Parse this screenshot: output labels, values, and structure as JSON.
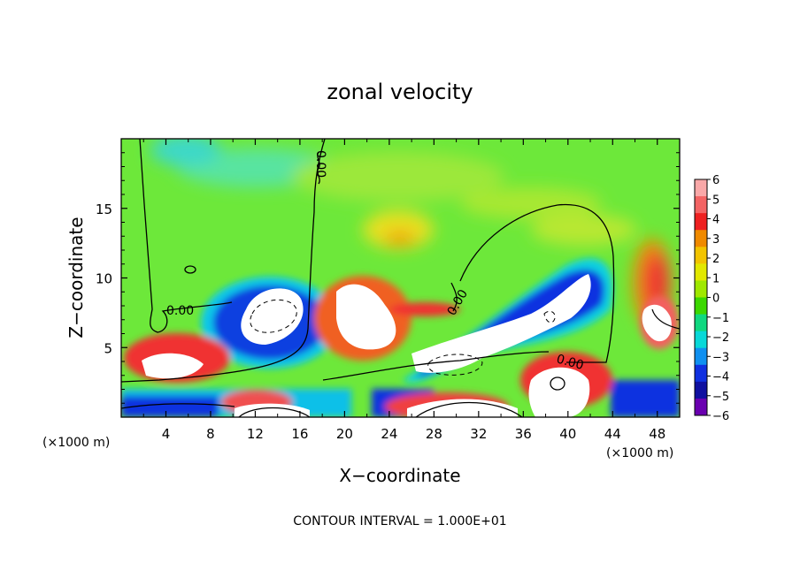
{
  "chart_data": {
    "type": "heatmap",
    "title": "zonal velocity",
    "xlabel": "X−coordinate",
    "ylabel": "Z−coordinate",
    "x_scale_note": "(×1000 m)",
    "z_scale_note": "(×1000 m)",
    "footer": "CONTOUR INTERVAL = 1.000E+01",
    "xlim": [
      0,
      50
    ],
    "ylim": [
      0,
      20
    ],
    "x_ticks": [
      4,
      8,
      12,
      16,
      20,
      24,
      28,
      32,
      36,
      40,
      44,
      48
    ],
    "y_ticks": [
      5,
      10,
      15
    ],
    "contour_label": "0.00",
    "colorbar": {
      "ticks": [
        "6",
        "5",
        "4",
        "3",
        "2",
        "1",
        "0",
        "−1",
        "−2",
        "−3",
        "−4",
        "−5",
        "−6"
      ],
      "colors": [
        "#f9a8a8",
        "#f36464",
        "#ee2020",
        "#f08a00",
        "#f2c400",
        "#e2e800",
        "#9fe800",
        "#3cd800",
        "#10d880",
        "#08d8d8",
        "#1090f0",
        "#1030e0",
        "#1010a0",
        "#6a00b0"
      ]
    },
    "features": [
      {
        "kind": "max",
        "x": 4,
        "z": 4.5,
        "value": 6
      },
      {
        "kind": "min",
        "x": 14,
        "z": 8,
        "value": -6
      },
      {
        "kind": "max",
        "x": 22,
        "z": 7.5,
        "value": 6
      },
      {
        "kind": "min",
        "x": 30,
        "z": 4,
        "value": -6
      },
      {
        "kind": "min",
        "x": 39,
        "z": 8,
        "value": -6
      },
      {
        "kind": "max",
        "x": 40,
        "z": 2,
        "value": 6
      },
      {
        "kind": "max",
        "x": 47,
        "z": 9,
        "value": 4
      },
      {
        "kind": "max",
        "x": 24,
        "z": 13,
        "value": 2
      }
    ]
  }
}
